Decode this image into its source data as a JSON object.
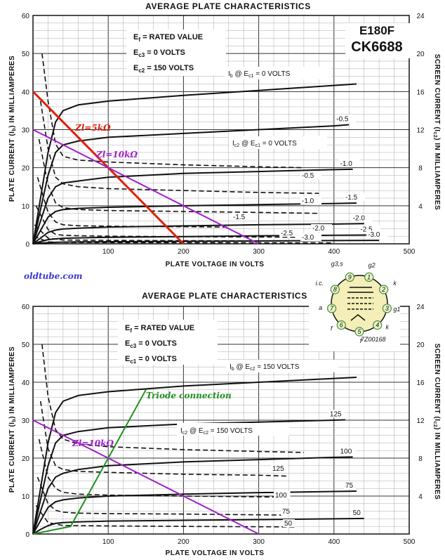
{
  "site_label": "oldtube.com",
  "chart_data": [
    {
      "type": "line",
      "title": "AVERAGE PLATE CHARACTERISTICS",
      "tube_labels": [
        "E180F",
        "CK6688"
      ],
      "xlabel": "PLATE VOLTAGE IN VOLTS",
      "ylabel": "PLATE CURRENT (Ib) IN MILLIAMPERES",
      "y2label": "SCREEN CURRENT (Ic2) IN MILLIAMPERES",
      "xlim": [
        0,
        500
      ],
      "ylim": [
        0,
        60
      ],
      "y2lim": [
        0,
        24
      ],
      "x_ticks": [
        "100",
        "200",
        "300",
        "400",
        "500"
      ],
      "y_ticks": [
        "0",
        "10",
        "20",
        "30",
        "40",
        "50",
        "60"
      ],
      "y2_ticks": [
        "4",
        "8",
        "12",
        "16",
        "20",
        "24"
      ],
      "conditions": [
        "Ef = RATED VALUE",
        "Ec3 = 0 VOLTS",
        "Ec2 = 150 VOLTS"
      ],
      "grid": true,
      "plate_curve_label": "Ib @ Ec1 = 0 VOLTS",
      "screen_curve_label": "Ic2 @ Ec1 = 0 VOLTS",
      "plate_series": [
        {
          "name": "0",
          "label": "",
          "x": [
            0,
            10,
            20,
            30,
            40,
            60,
            100,
            200,
            300,
            400,
            430
          ],
          "y": [
            0,
            12,
            24,
            32,
            35,
            36.5,
            37.5,
            39,
            40.3,
            41.6,
            42
          ]
        },
        {
          "name": "-0.5",
          "label": "-0.5",
          "x": [
            0,
            10,
            20,
            30,
            40,
            60,
            100,
            200,
            300,
            400,
            420
          ],
          "y": [
            0,
            9,
            18,
            24,
            26,
            27,
            28,
            29,
            30,
            31,
            31.3
          ]
        },
        {
          "name": "-1.0",
          "label": "-1.0",
          "x": [
            0,
            10,
            20,
            30,
            40,
            60,
            100,
            200,
            300,
            400,
            425
          ],
          "y": [
            0,
            6,
            12,
            15,
            16,
            16.5,
            17.5,
            18.5,
            19,
            19.5,
            19.6
          ]
        },
        {
          "name": "-1.5",
          "label": "-1.5",
          "x": [
            0,
            10,
            20,
            30,
            40,
            60,
            100,
            200,
            300,
            400,
            430
          ],
          "y": [
            0,
            3.5,
            7,
            8.5,
            9,
            9.3,
            9.6,
            10,
            10.3,
            10.6,
            10.7
          ]
        },
        {
          "name": "-2.0",
          "label": "-2.0",
          "x": [
            0,
            10,
            20,
            30,
            40,
            60,
            100,
            200,
            300,
            400,
            440
          ],
          "y": [
            0,
            1.5,
            3,
            3.6,
            3.9,
            4.1,
            4.4,
            4.7,
            5,
            5.2,
            5.3
          ]
        },
        {
          "name": "-2.5",
          "label": "-2.5",
          "x": [
            0,
            10,
            20,
            30,
            40,
            60,
            100,
            200,
            300,
            400,
            450
          ],
          "y": [
            0,
            0.6,
            1.1,
            1.3,
            1.45,
            1.55,
            1.7,
            1.9,
            2.1,
            2.25,
            2.3
          ]
        },
        {
          "name": "-3.0",
          "label": "-3.0",
          "x": [
            0,
            10,
            20,
            30,
            40,
            60,
            100,
            200,
            300,
            400,
            460
          ],
          "y": [
            0,
            0.2,
            0.3,
            0.4,
            0.45,
            0.5,
            0.55,
            0.65,
            0.75,
            0.85,
            0.9
          ]
        }
      ],
      "screen_series": [
        {
          "name": "0",
          "label": "",
          "x": [
            12,
            20,
            30,
            40,
            60,
            100,
            200,
            300,
            360
          ],
          "y": [
            20,
            15,
            10.5,
            9.2,
            8.8,
            8.6,
            8.3,
            8.1,
            8
          ]
        },
        {
          "name": "-0.5",
          "label": "-0.5",
          "x": [
            10,
            20,
            30,
            40,
            60,
            100,
            200,
            300,
            380
          ],
          "y": [
            15,
            10,
            7,
            6.3,
            6,
            5.8,
            5.6,
            5.4,
            5.3
          ]
        },
        {
          "name": "-1.0",
          "label": "-1.0",
          "x": [
            8,
            20,
            30,
            40,
            60,
            100,
            200,
            300,
            380
          ],
          "y": [
            11,
            6.2,
            4.3,
            3.8,
            3.6,
            3.5,
            3.4,
            3.3,
            3.2
          ]
        },
        {
          "name": "-1.5",
          "label": "-1.5",
          "x": [
            6,
            20,
            30,
            40,
            60,
            100,
            200,
            260
          ],
          "y": [
            7,
            3.3,
            2.3,
            2,
            1.9,
            1.85,
            1.8,
            1.75
          ]
        },
        {
          "name": "-2.0",
          "label": "-2.0",
          "x": [
            4,
            20,
            30,
            40,
            60,
            100,
            200,
            350
          ],
          "y": [
            4,
            1.5,
            1,
            0.9,
            0.85,
            0.8,
            0.75,
            0.7
          ]
        },
        {
          "name": "-2.5",
          "label": "-2.5",
          "x": [
            2,
            20,
            40,
            100,
            200,
            340
          ],
          "y": [
            2,
            0.6,
            0.4,
            0.36,
            0.33,
            0.3
          ]
        },
        {
          "name": "-3.0",
          "label": "-3.0",
          "x": [
            1,
            20,
            40,
            100,
            200,
            400
          ],
          "y": [
            0.8,
            0.2,
            0.15,
            0.13,
            0.12,
            0.1
          ]
        }
      ],
      "load_lines": [
        {
          "name": "Zl=5kΩ",
          "color": "#e02010",
          "x": [
            0,
            200
          ],
          "y": [
            40,
            0
          ]
        },
        {
          "name": "Zl=10kΩ",
          "color": "#a020c8",
          "x": [
            0,
            300
          ],
          "y": [
            30,
            0
          ]
        }
      ]
    },
    {
      "type": "line",
      "title": "AVERAGE PLATE CHARACTERISTICS",
      "xlabel": "PLATE VOLTAGE IN VOLTS",
      "ylabel": "PLATE CURRENT (Ib) IN MILLIAMPERES",
      "y2label": "SCREEN CURRENT (Ic2) IN MILLIAMPERES",
      "xlim": [
        0,
        500
      ],
      "ylim": [
        0,
        60
      ],
      "y2lim": [
        0,
        24
      ],
      "x_ticks": [
        "100",
        "200",
        "300",
        "400",
        "500"
      ],
      "y_ticks": [
        "0",
        "10",
        "20",
        "30",
        "40",
        "50",
        "60"
      ],
      "y2_ticks": [
        "4",
        "8",
        "12",
        "16",
        "20",
        "24"
      ],
      "conditions": [
        "Ef = RATED VALUE",
        "Ec3 = 0 VOLTS",
        "Ec1 = 0 VOLTS"
      ],
      "grid": true,
      "plate_curve_label": "Ib @ Ec2 = 150 VOLTS",
      "screen_curve_label": "Ic2 @ Ec2 = 150 VOLTS",
      "plate_series": [
        {
          "name": "150",
          "label": "",
          "x": [
            0,
            10,
            20,
            30,
            40,
            60,
            100,
            200,
            300,
            400,
            430
          ],
          "y": [
            0,
            12,
            24,
            32,
            35,
            36.5,
            37.5,
            39,
            40,
            41,
            41.3
          ]
        },
        {
          "name": "125",
          "label": "125",
          "x": [
            0,
            10,
            20,
            30,
            40,
            60,
            100,
            200,
            300,
            400,
            415
          ],
          "y": [
            0,
            9,
            18,
            24,
            26,
            27,
            28,
            29,
            29.5,
            30,
            30.1
          ]
        },
        {
          "name": "100",
          "label": "100",
          "x": [
            0,
            10,
            20,
            30,
            40,
            60,
            100,
            200,
            300,
            400,
            425
          ],
          "y": [
            0,
            6,
            12,
            15,
            16,
            17,
            18,
            19,
            19.6,
            20.2,
            20.3
          ]
        },
        {
          "name": "75",
          "label": "75",
          "x": [
            0,
            10,
            20,
            30,
            40,
            60,
            100,
            200,
            300,
            400,
            430
          ],
          "y": [
            0,
            3.5,
            7,
            8.5,
            9,
            9.5,
            10,
            10.5,
            10.9,
            11.2,
            11.3
          ]
        },
        {
          "name": "50",
          "label": "50",
          "x": [
            0,
            10,
            20,
            30,
            40,
            60,
            100,
            200,
            300,
            400,
            440
          ],
          "y": [
            0,
            1.2,
            2.2,
            2.8,
            3,
            3.2,
            3.4,
            3.6,
            3.8,
            4,
            4.1
          ]
        }
      ],
      "screen_series": [
        {
          "name": "150",
          "label": "",
          "x": [
            12,
            20,
            30,
            40,
            60,
            100,
            200,
            300,
            360
          ],
          "y": [
            20,
            14.5,
            11,
            10,
            9.5,
            9.2,
            8.9,
            8.7,
            8.6
          ]
        },
        {
          "name": "125",
          "label": "125",
          "x": [
            10,
            20,
            30,
            40,
            60,
            100,
            200,
            300,
            340
          ],
          "y": [
            14,
            9,
            7.2,
            6.8,
            6.6,
            6.5,
            6.3,
            6.2,
            6.1
          ]
        },
        {
          "name": "100",
          "label": "100",
          "x": [
            8,
            20,
            30,
            40,
            60,
            100,
            200,
            320
          ],
          "y": [
            10,
            6,
            4.8,
            4.4,
            4.2,
            4.1,
            4,
            3.9
          ]
        },
        {
          "name": "75",
          "label": "75",
          "x": [
            6,
            20,
            30,
            40,
            60,
            100,
            200,
            330
          ],
          "y": [
            6,
            3.2,
            2.5,
            2.3,
            2.2,
            2.15,
            2.1,
            2
          ]
        },
        {
          "name": "50",
          "label": "50",
          "x": [
            4,
            20,
            40,
            100,
            200,
            350
          ],
          "y": [
            3,
            1.2,
            0.9,
            0.85,
            0.8,
            0.75
          ]
        }
      ],
      "load_lines": [
        {
          "name": "Zl=10kΩ",
          "color": "#a020c8",
          "x": [
            0,
            300
          ],
          "y": [
            30,
            0
          ]
        },
        {
          "name": "Triode connection",
          "color": "#209020",
          "x": [
            0,
            50,
            150
          ],
          "y": [
            0,
            2,
            38
          ]
        }
      ],
      "pinout": {
        "pins": [
          "1",
          "2",
          "3",
          "4",
          "5",
          "6",
          "7",
          "8",
          "9"
        ],
        "labels": [
          "g2",
          "k",
          "g1",
          "k",
          "f",
          "f",
          "a",
          "i.c.",
          "g3,s"
        ],
        "code": "7Z00168"
      }
    }
  ]
}
